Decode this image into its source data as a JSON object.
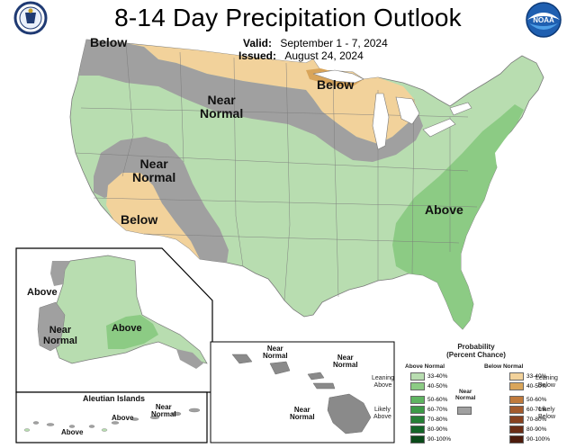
{
  "title": "8-14 Day Precipitation Outlook",
  "valid_label": "Valid:",
  "valid_value": "September 1 - 7, 2024",
  "issued_label": "Issued:",
  "issued_value": "August 24, 2024",
  "logos": {
    "left": {
      "icon": "commerce-seal-icon",
      "text": "DEPARTMENT OF COMMERCE"
    },
    "right": {
      "icon": "noaa-logo-icon",
      "text": "NOAA"
    }
  },
  "map_labels": {
    "below_nw": "Below",
    "near_normal_north": "Near\nNormal",
    "below_great_lakes": "Below",
    "near_normal_west": "Near\nNormal",
    "below_sw": "Below",
    "above_east": "Above"
  },
  "alaska_labels": {
    "above_w": "Above",
    "near_normal": "Near\nNormal",
    "above_s": "Above"
  },
  "aleutian": {
    "title": "Aleutian Islands",
    "near_normal": "Near\nNormal",
    "above_1": "Above",
    "above_2": "Above"
  },
  "hawaii_labels": {
    "nn1": "Near\nNormal",
    "nn2": "Near\nNormal",
    "nn3": "Near\nNormal"
  },
  "legend": {
    "title": "Probability\n(Percent Chance)",
    "above_header": "Above Normal",
    "below_header": "Below Normal",
    "near_normal": "Near\nNormal",
    "leaning_above": "Leaning\nAbove",
    "likely_above": "Likely\nAbove",
    "leaning_below": "Leaning\nBelow",
    "likely_below": "Likely\nBelow",
    "above_bins": [
      {
        "label": "33-40%",
        "color": "#b8ddb0"
      },
      {
        "label": "40-50%",
        "color": "#8ccb84"
      },
      {
        "label": "50-60%",
        "color": "#5fb461"
      },
      {
        "label": "60-70%",
        "color": "#3d9a47"
      },
      {
        "label": "70-80%",
        "color": "#267f36"
      },
      {
        "label": "80-90%",
        "color": "#146528"
      },
      {
        "label": "90-100%",
        "color": "#0a4a1a"
      }
    ],
    "below_bins": [
      {
        "label": "33-40%",
        "color": "#f2d29b"
      },
      {
        "label": "40-50%",
        "color": "#d9a55a"
      },
      {
        "label": "50-60%",
        "color": "#c07a3c"
      },
      {
        "label": "60-70%",
        "color": "#a35a2c"
      },
      {
        "label": "70-80%",
        "color": "#87411f"
      },
      {
        "label": "80-90%",
        "color": "#6b2d15"
      },
      {
        "label": "90-100%",
        "color": "#4d1c0c"
      }
    ],
    "near_color": "#a0a0a0"
  },
  "colors": {
    "above_light": "#b8ddb0",
    "above_mid": "#8ccb84",
    "below_light": "#f2d29b",
    "below_mid": "#d9a55a",
    "near": "#a0a0a0",
    "water": "#ffffff",
    "border": "#7a7a7a"
  }
}
